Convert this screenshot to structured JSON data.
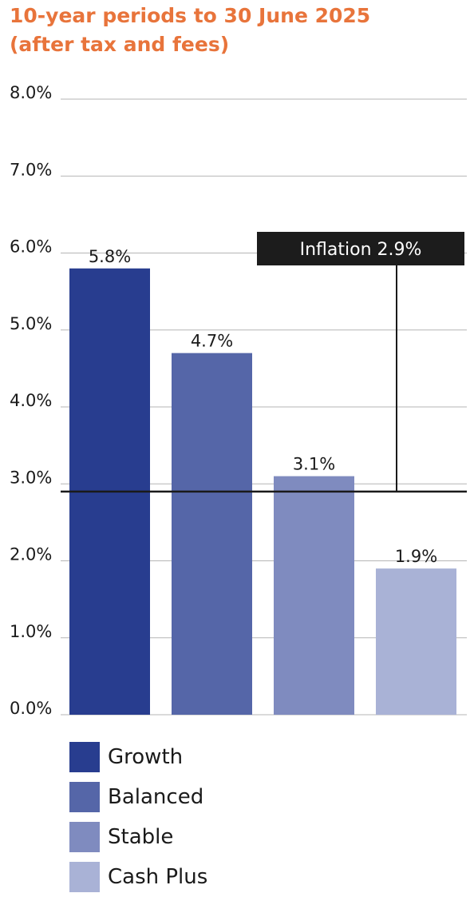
{
  "colors": {
    "title": "#e8743b",
    "grid": "#b5b5b5",
    "inflation_line": "#1a1a1a",
    "inflation_box": "#1c1c1c"
  },
  "chart_data": {
    "type": "bar",
    "title_lines": [
      "10-year periods to 30 June 2025",
      "(after tax and fees)"
    ],
    "categories": [
      "Growth",
      "Balanced",
      "Stable",
      "Cash Plus"
    ],
    "values": [
      5.8,
      4.7,
      3.1,
      1.9
    ],
    "value_labels": [
      "5.8%",
      "4.7%",
      "3.1%",
      "1.9%"
    ],
    "bar_colors": [
      "#283d8f",
      "#5566a8",
      "#7f8bbf",
      "#a9b2d6"
    ],
    "ylim": [
      0,
      8
    ],
    "yticks": [
      0,
      1,
      2,
      3,
      4,
      5,
      6,
      7,
      8
    ],
    "ytick_labels": [
      "0.0%",
      "1.0%",
      "2.0%",
      "3.0%",
      "4.0%",
      "5.0%",
      "6.0%",
      "7.0%",
      "8.0%"
    ],
    "grid": true,
    "reference_line": {
      "value": 2.9,
      "label": "Inflation 2.9%"
    },
    "legend": {
      "position": "bottom",
      "entries": [
        "Growth",
        "Balanced",
        "Stable",
        "Cash Plus"
      ]
    }
  }
}
